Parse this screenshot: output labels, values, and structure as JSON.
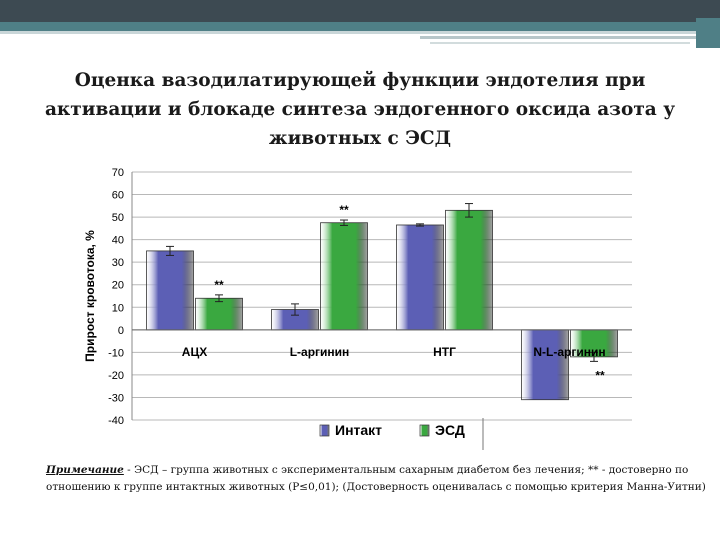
{
  "slide": {
    "title": "Оценка вазодилатирующей функции эндотелия при активации и блокаде синтеза эндогенного оксида азота у животных с ЭСД"
  },
  "chart_data": {
    "type": "bar",
    "title": "",
    "xlabel": "",
    "ylabel": "Прирост кровотока, %",
    "ylim": [
      -40,
      70
    ],
    "yticks": [
      70,
      60,
      50,
      40,
      30,
      20,
      10,
      0,
      -10,
      -20,
      -30,
      -40
    ],
    "grid": true,
    "legend_position": "bottom",
    "categories": [
      "АЦХ",
      "L-аргинин",
      "НТГ",
      "N-L-аргинин"
    ],
    "series": [
      {
        "name": "Интакт",
        "color": "#5c5fb5",
        "values": [
          35,
          9,
          46.5,
          -31
        ],
        "errors": [
          2,
          2.5,
          0.5,
          0
        ]
      },
      {
        "name": "ЭСД",
        "color": "#3aa840",
        "values": [
          14,
          47.5,
          53,
          -12
        ],
        "errors": [
          1.5,
          1.2,
          3,
          2
        ]
      }
    ],
    "annotations": [
      {
        "category": "АЦХ",
        "series": "ЭСД",
        "text": "**"
      },
      {
        "category": "L-аргинин",
        "series": "ЭСД",
        "text": "**"
      },
      {
        "category": "N-L-аргинин",
        "series": "ЭСД",
        "text": "**"
      }
    ]
  },
  "note": {
    "label": "Примечание",
    "text": " - ЭСД – группа животных с экспериментальным сахарным диабетом без лечения; ** - достоверно по отношению к группе интактных животных (Р≤0,01); (Достоверность оценивалась с помощью критерия Манна-Уитни)"
  }
}
